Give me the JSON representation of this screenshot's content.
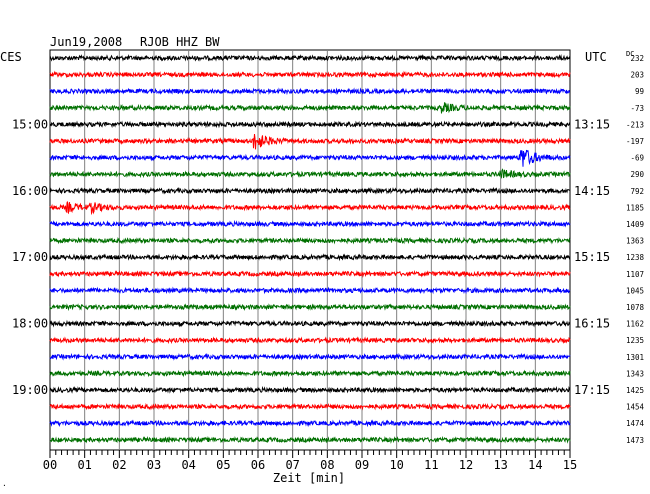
{
  "header": {
    "date": "Jun19,2008",
    "station": "RJOB HHZ BW",
    "left_tz": "CES",
    "right_tz": "UTC",
    "dc_label": "DC"
  },
  "chart_data": {
    "type": "line",
    "title": "Jun19,2008   RJOB HHZ BW",
    "xlabel": "Zeit [min]",
    "x_ticks": [
      "00",
      "01",
      "02",
      "03",
      "04",
      "05",
      "06",
      "07",
      "08",
      "09",
      "10",
      "11",
      "12",
      "13",
      "14",
      "15"
    ],
    "xlim": [
      0,
      15
    ],
    "row_duration_min": 15,
    "trace_colors": [
      "#000000",
      "#ff0000",
      "#0000ff",
      "#007000"
    ],
    "left_time_labels": [
      {
        "row": 4,
        "label": "15:00"
      },
      {
        "row": 8,
        "label": "16:00"
      },
      {
        "row": 12,
        "label": "17:00"
      },
      {
        "row": 16,
        "label": "18:00"
      },
      {
        "row": 20,
        "label": "19:00"
      }
    ],
    "right_time_labels": [
      {
        "row": 4,
        "label": "13:15"
      },
      {
        "row": 8,
        "label": "14:15"
      },
      {
        "row": 12,
        "label": "15:15"
      },
      {
        "row": 16,
        "label": "16:15"
      },
      {
        "row": 20,
        "label": "17:15"
      }
    ],
    "dc_offsets": [
      "232",
      "203",
      "99",
      "-73",
      "-213",
      "-197",
      "-69",
      "290",
      "792",
      "1185",
      "1409",
      "1363",
      "1238",
      "1107",
      "1045",
      "1078",
      "1162",
      "1235",
      "1301",
      "1343",
      "1425",
      "1454",
      "1474",
      "1473"
    ],
    "events": [
      {
        "row": 3,
        "minute": 11.3,
        "amplitude": 1.6
      },
      {
        "row": 5,
        "minute": 5.9,
        "amplitude": 3.2
      },
      {
        "row": 6,
        "minute": 13.6,
        "amplitude": 4.0
      },
      {
        "row": 7,
        "minute": 13.0,
        "amplitude": 1.4
      },
      {
        "row": 9,
        "minute": 0.5,
        "amplitude": 1.6
      },
      {
        "row": 9,
        "minute": 1.2,
        "amplitude": 1.4
      }
    ],
    "grid": true
  }
}
